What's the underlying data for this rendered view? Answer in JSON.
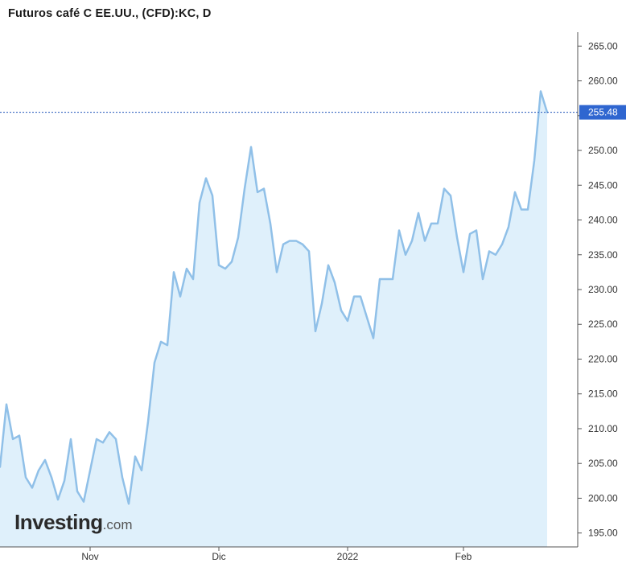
{
  "title": "Futuros café C EE.UU., (CFD):KC, D",
  "brand": {
    "name": "Investing",
    "suffix": ".com"
  },
  "colors": {
    "line": "#90c0e8",
    "area": "#dff0fb",
    "axis": "#555555",
    "last_price_line": "#2255bb",
    "last_price_badge": "#2f66d0"
  },
  "chart_data": {
    "type": "area",
    "title": "Futuros café C EE.UU., (CFD):KC, D",
    "ylim": [
      193,
      267
    ],
    "y_ticks": [
      195,
      200,
      205,
      210,
      215,
      220,
      225,
      230,
      235,
      240,
      245,
      250,
      255,
      260,
      265
    ],
    "y_tick_labels": [
      "195.00",
      "200.00",
      "205.00",
      "210.00",
      "215.00",
      "220.00",
      "225.00",
      "230.00",
      "235.00",
      "240.00",
      "245.00",
      "250.00",
      "255.00",
      "260.00",
      "265.00"
    ],
    "x_tick_labels": [
      {
        "label": "Nov",
        "index": 14
      },
      {
        "label": "Dic",
        "index": 34
      },
      {
        "label": "2022",
        "index": 54
      },
      {
        "label": "Feb",
        "index": 72
      }
    ],
    "last_price": 255.48,
    "last_price_label": "255.48",
    "values": [
      204.5,
      213.5,
      208.5,
      209.0,
      203.0,
      201.5,
      204.0,
      205.5,
      203.0,
      199.8,
      202.5,
      208.5,
      201.0,
      199.5,
      204.0,
      208.5,
      208.0,
      209.5,
      208.5,
      203.0,
      199.2,
      206.0,
      204.0,
      211.0,
      219.5,
      222.5,
      222.0,
      232.5,
      229.0,
      233.0,
      231.5,
      242.5,
      246.0,
      243.5,
      233.5,
      233.0,
      234.0,
      237.5,
      244.5,
      250.5,
      244.0,
      244.5,
      239.5,
      232.5,
      236.5,
      237.0,
      237.0,
      236.5,
      235.5,
      224.0,
      228.0,
      233.5,
      231.0,
      227.0,
      225.5,
      229.0,
      229.0,
      226.0,
      223.0,
      231.5,
      231.5,
      231.5,
      238.5,
      235.0,
      237.0,
      241.0,
      237.0,
      239.5,
      239.5,
      244.5,
      243.5,
      237.5,
      232.5,
      238.0,
      238.5,
      231.5,
      235.5,
      235.0,
      236.5,
      239.0,
      244.0,
      241.5,
      241.5,
      248.5,
      258.5,
      255.48
    ]
  }
}
